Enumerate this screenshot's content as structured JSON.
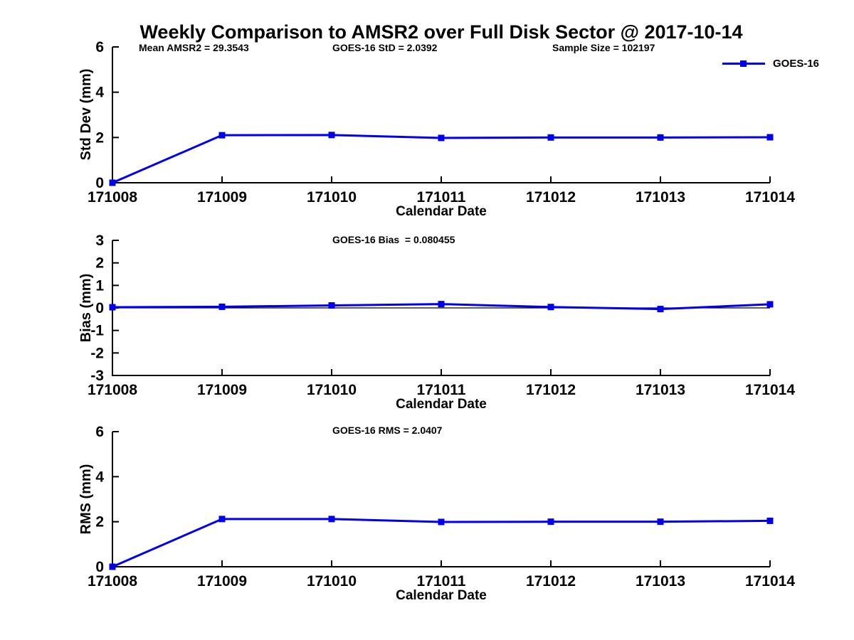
{
  "page": {
    "title": "Weekly Comparison to AMSR2 over Full Disk Sector @ 2017-10-14",
    "background_color": "#ffffff",
    "text_color": "#000000",
    "accent_color": "#0000ee"
  },
  "chart_data": [
    {
      "type": "line",
      "panel": "std-dev",
      "categories": [
        "171008",
        "171009",
        "171010",
        "171011",
        "171012",
        "171013",
        "171014"
      ],
      "series": [
        {
          "name": "GOES-16",
          "color": "#0000ee",
          "marker": "square",
          "values": [
            0,
            2.1,
            2.11,
            1.98,
            2.0,
            2.0,
            2.01
          ]
        }
      ],
      "xlabel": "Calendar Date",
      "ylabel": "Std Dev (mm)",
      "ylim": [
        0,
        6
      ],
      "yticks": [
        0,
        2,
        4,
        6
      ],
      "grid": false,
      "zero_line": false,
      "annotations": [
        "Mean AMSR2 = 29.3543",
        "GOES-16 StD = 2.0392",
        "Sample Size = 102197"
      ],
      "legend": {
        "label": "GOES-16",
        "position": "top-right-outside"
      }
    },
    {
      "type": "line",
      "panel": "bias",
      "categories": [
        "171008",
        "171009",
        "171010",
        "171011",
        "171012",
        "171013",
        "171014"
      ],
      "series": [
        {
          "name": "GOES-16",
          "color": "#0000ee",
          "marker": "square",
          "values": [
            0.03,
            0.05,
            0.11,
            0.17,
            0.04,
            -0.05,
            0.16
          ]
        }
      ],
      "xlabel": "Calendar Date",
      "ylabel": "Bias (mm)",
      "ylim": [
        -3,
        3
      ],
      "yticks": [
        3,
        2,
        1,
        0,
        -1,
        -2,
        -3
      ],
      "grid": false,
      "zero_line": true,
      "annotations": [
        "GOES-16 Bias  = 0.080455"
      ]
    },
    {
      "type": "line",
      "panel": "rms",
      "categories": [
        "171008",
        "171009",
        "171010",
        "171011",
        "171012",
        "171013",
        "171014"
      ],
      "series": [
        {
          "name": "GOES-16",
          "color": "#0000ee",
          "marker": "square",
          "values": [
            0,
            2.12,
            2.12,
            1.99,
            2.0,
            2.0,
            2.04
          ]
        }
      ],
      "xlabel": "Calendar Date",
      "ylabel": "RMS (mm)",
      "ylim": [
        0,
        6
      ],
      "yticks": [
        0,
        2,
        4,
        6
      ],
      "grid": false,
      "zero_line": false,
      "annotations": [
        "GOES-16 RMS = 2.0407"
      ]
    }
  ]
}
